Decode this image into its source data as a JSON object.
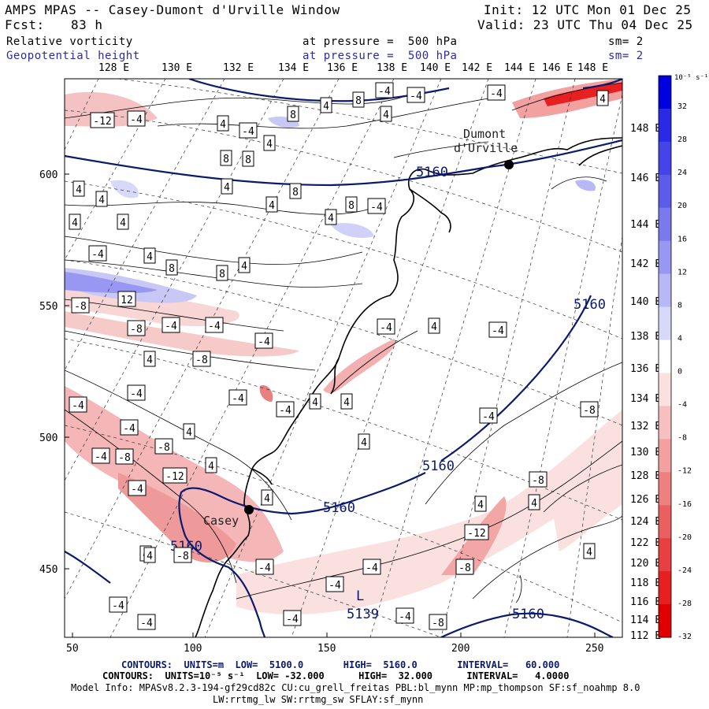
{
  "header": {
    "title": "AMPS MPAS -- Casey-Dumont d'Urville Window",
    "init": "Init: 12 UTC Mon 01 Dec 25",
    "fcst_label": "Fcst:",
    "fcst_value": "83 h",
    "valid": "Valid: 23 UTC Thu 04 Dec 25",
    "field1_name": "Relative vorticity",
    "field1_level": "at pressure =  500 hPa",
    "field1_sm": "sm= 2",
    "field2_name": "Geopotential height",
    "field2_level": "at pressure =  500 hPa",
    "field2_sm": "sm= 2"
  },
  "top_lon_labels": [
    "128 E",
    "130 E",
    "132 E",
    "134 E",
    "136 E",
    "138 E",
    "140 E",
    "142 E",
    "144 E",
    "146 E",
    "148 E"
  ],
  "right_lon_labels": [
    "148 E",
    "146 E",
    "144 E",
    "142 E",
    "140 E",
    "138 E",
    "136 E",
    "134 E",
    "132 E",
    "130 E",
    "128 E",
    "126 E",
    "124 E",
    "122 E",
    "120 E",
    "118 E",
    "116 E",
    "114 E",
    "112 E"
  ],
  "x_axis_labels": [
    "50",
    "100",
    "150",
    "200",
    "250"
  ],
  "y_axis_labels": [
    "600",
    "550",
    "500",
    "450"
  ],
  "colorbar": {
    "unit_label": "10⁻⁵ s⁻¹",
    "labels": [
      "32",
      "28",
      "24",
      "20",
      "16",
      "12",
      "8",
      "4",
      "0",
      "-4",
      "-8",
      "-12",
      "-16",
      "-20",
      "-24",
      "-28",
      "-32"
    ],
    "colors": [
      "#0000e0",
      "#2a2ae6",
      "#4444e8",
      "#5c5cea",
      "#7a7aee",
      "#9898f2",
      "#b8b8f6",
      "#d8d8fa",
      "#ffffff",
      "#fbe0e0",
      "#f6c0c0",
      "#f2a0a0",
      "#ee8080",
      "#ea6060",
      "#e84040",
      "#e62020",
      "#e00000"
    ]
  },
  "places": [
    {
      "name": "Dumont\nd'Urville",
      "line1": "Dumont",
      "line2": "d'Urville"
    },
    {
      "name": "Casey"
    }
  ],
  "height_contour_labels": [
    "5160",
    "5160",
    "5160",
    "5160",
    "5160",
    "5160"
  ],
  "low_label": {
    "symbol": "L",
    "value": "5139"
  },
  "vort_labels": [
    "-12",
    "-4",
    "4",
    "8",
    "8",
    "-4",
    "-4",
    "-4",
    "4",
    "4",
    "4",
    "4",
    "-4",
    "8",
    "8",
    "4",
    "4",
    "4",
    "8",
    "4",
    "4",
    "-4",
    "4",
    "8",
    "4",
    "12",
    "4",
    "8",
    "8",
    "4",
    "-8",
    "-8",
    "-4",
    "-4",
    "-4",
    "4",
    "-4",
    "-8",
    "-4",
    "-4",
    "-4",
    "4",
    "-8",
    "-8",
    "-4",
    "4",
    "-4",
    "4",
    "-12",
    "-4",
    "4",
    "-8",
    "4",
    "-4",
    "-4",
    "-12",
    "-8",
    "-4",
    "-4",
    "-8",
    "4",
    "-4",
    "-4",
    "-4",
    "-8",
    "4",
    "-4",
    "-4",
    "-4",
    "4",
    "4",
    "4",
    "-4",
    "-8",
    "4",
    "4"
  ],
  "footer": {
    "line1": "CONTOURS:  UNITS=m  LOW=  5100.0       HIGH=  5160.0       INTERVAL=   60.000",
    "line2": "CONTOURS:  UNITS=10⁻⁵ s⁻¹  LOW= -32.000      HIGH=  32.000      INTERVAL=   4.0000",
    "line3": "Model Info: MPASv8.2.3-194-gf29cd82c CU:cu_grell_freitas PBL:bl_mynn MP:mp_thompson SF:sf_noahmp 8.0",
    "line4": "LW:rrtmg_lw SW:rrtmg_sw SFLAY:sf_mynn"
  }
}
